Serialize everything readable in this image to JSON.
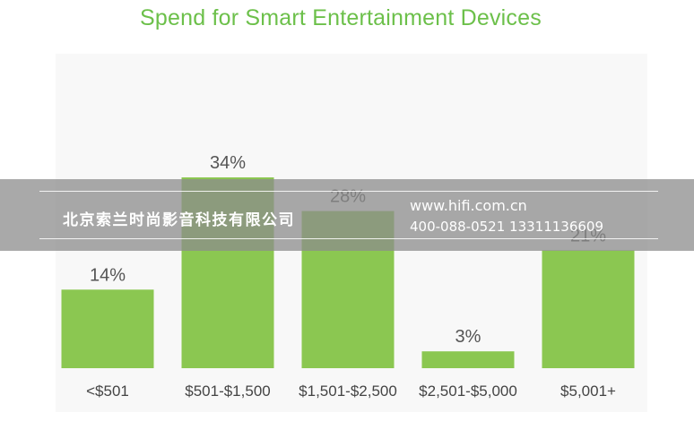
{
  "chart_data": {
    "type": "bar",
    "title": "Spend for Smart Entertainment Devices",
    "categories": [
      "<$501",
      "$501-$1,500",
      "$1,501-$2,500",
      "$2,501-$5,000",
      "$5,001+"
    ],
    "values": [
      14,
      34,
      28,
      3,
      21
    ],
    "value_labels": [
      "14%",
      "34%",
      "28%",
      "3%",
      "21%"
    ],
    "ylim": [
      0,
      34
    ],
    "grid": false,
    "bar_color": "#8bc751"
  },
  "watermark": {
    "company": "北京索兰时尚影音科技有限公司",
    "url": "www.hifi.com.cn",
    "phone": "400-088-0521  13311136609"
  }
}
